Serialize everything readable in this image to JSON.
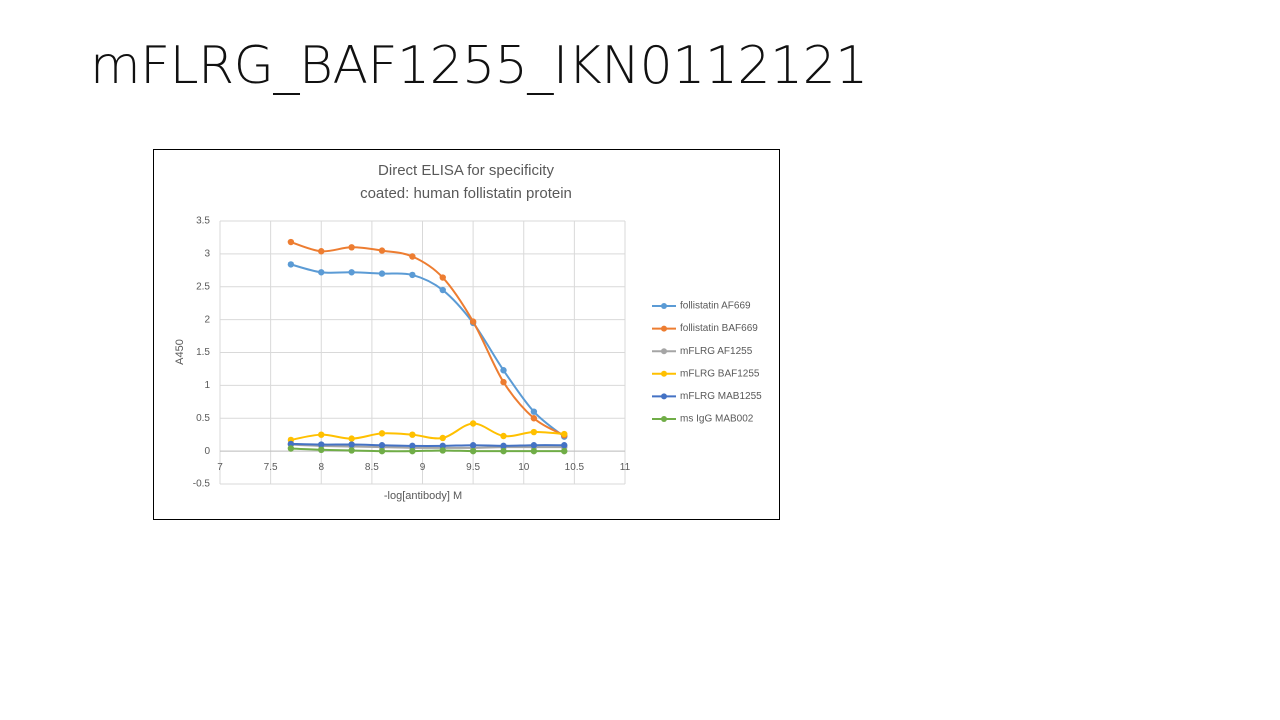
{
  "slide_title": "mFLRG_BAF1255_IKN0112121",
  "chart_data": {
    "type": "line",
    "title": "Direct ELISA for specificity",
    "subtitle": "coated: human follistatin protein",
    "x_label": "-log[antibody] M",
    "y_label": "A450",
    "x": [
      7.7,
      8.0,
      8.3,
      8.6,
      8.9,
      9.2,
      9.5,
      9.8,
      10.1,
      10.4
    ],
    "series": [
      {
        "name": "follistatin AF669",
        "color": "#5b9bd5",
        "values": [
          2.84,
          2.72,
          2.72,
          2.7,
          2.68,
          2.45,
          1.95,
          1.23,
          0.6,
          0.22
        ]
      },
      {
        "name": "follistatin BAF669",
        "color": "#ed7d31",
        "values": [
          3.18,
          3.04,
          3.1,
          3.05,
          2.96,
          2.64,
          1.97,
          1.05,
          0.5,
          0.24
        ]
      },
      {
        "name": "mFLRG AF1255",
        "color": "#a5a5a5",
        "values": [
          0.1,
          0.08,
          0.07,
          0.06,
          0.05,
          0.05,
          0.05,
          0.06,
          0.06,
          0.06
        ]
      },
      {
        "name": "mFLRG BAF1255",
        "color": "#ffc000",
        "values": [
          0.17,
          0.25,
          0.19,
          0.27,
          0.25,
          0.2,
          0.42,
          0.23,
          0.29,
          0.26
        ]
      },
      {
        "name": "mFLRG MAB1255",
        "color": "#4472c4",
        "values": [
          0.11,
          0.1,
          0.1,
          0.09,
          0.08,
          0.08,
          0.09,
          0.08,
          0.09,
          0.09
        ]
      },
      {
        "name": "ms IgG MAB002",
        "color": "#70ad47",
        "values": [
          0.04,
          0.02,
          0.01,
          0.0,
          0.0,
          0.01,
          0.0,
          0.0,
          0.0,
          0.0
        ]
      }
    ],
    "xlim": [
      7,
      11
    ],
    "xticks": [
      7,
      7.5,
      8,
      8.5,
      9,
      9.5,
      10,
      10.5,
      11
    ],
    "ylim": [
      -0.5,
      3.5
    ],
    "yticks": [
      -0.5,
      0,
      0.5,
      1,
      1.5,
      2,
      2.5,
      3,
      3.5
    ],
    "grid": true,
    "smooth": true,
    "legend": "right"
  }
}
